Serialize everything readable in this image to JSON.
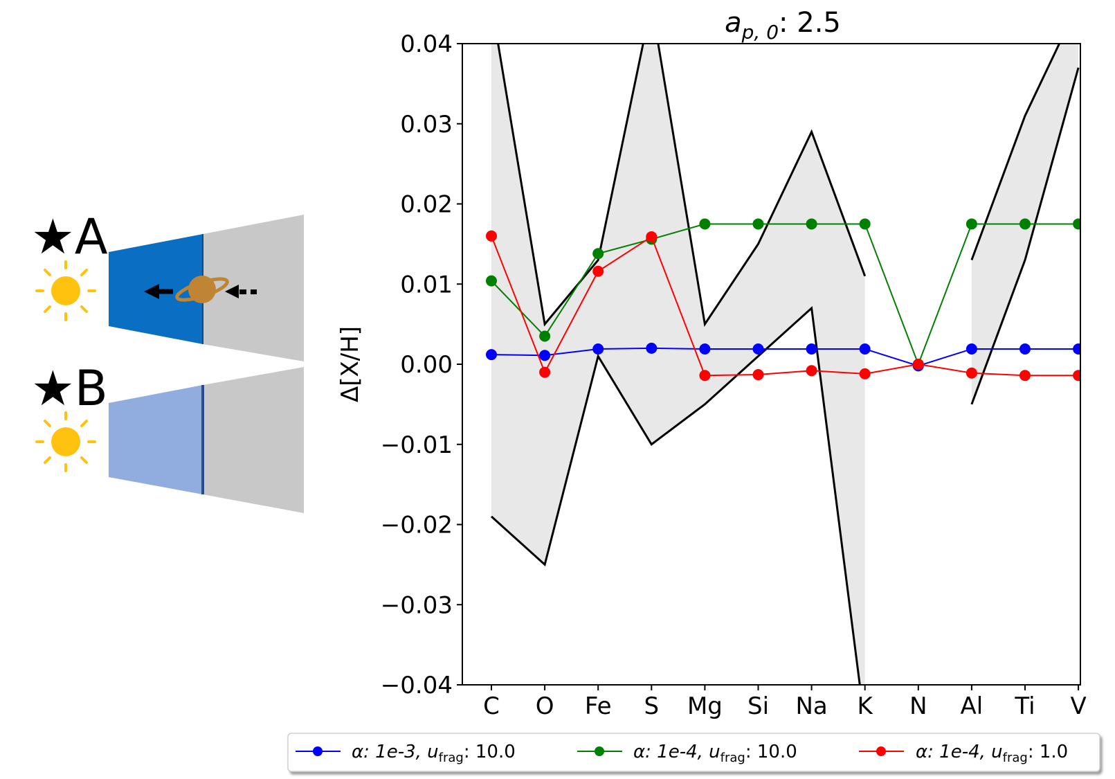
{
  "schematic": {
    "label_a": "★A",
    "label_b": "★B",
    "sun_icon": "sun-icon",
    "planet_icon": "planet-icon",
    "colors": {
      "disc_a_inner": "#0a6fc2",
      "disc_b_inner": "#91acdf",
      "disc_outer": "#c8c8c8",
      "sun": "#ffc20e"
    }
  },
  "chart_data": {
    "type": "line",
    "title_main": "a",
    "title_sub": "p, 0",
    "title_rest": ": 2.5",
    "xlabel": "",
    "ylabel": "Δ[X/H]",
    "categories": [
      "C",
      "O",
      "Fe",
      "S",
      "Mg",
      "Si",
      "Na",
      "K",
      "N",
      "Al",
      "Ti",
      "V"
    ],
    "ylim": [
      -0.04,
      0.04
    ],
    "yticks": [
      "−0.04",
      "−0.03",
      "−0.02",
      "−0.01",
      "0.00",
      "0.01",
      "0.02",
      "0.03",
      "0.04"
    ],
    "ytick_values": [
      -0.04,
      -0.03,
      -0.02,
      -0.01,
      0.0,
      0.01,
      0.02,
      0.03,
      0.04
    ],
    "observed_band": {
      "segments": [
        {
          "categories": [
            "C",
            "O",
            "Fe",
            "S",
            "Mg",
            "Si",
            "Na",
            "K"
          ],
          "upper": [
            0.045,
            0.005,
            0.013,
            0.045,
            0.005,
            0.015,
            0.029,
            0.011
          ],
          "lower": [
            -0.019,
            -0.025,
            0.001,
            -0.01,
            -0.005,
            0.001,
            0.007,
            -0.045
          ]
        },
        {
          "categories": [
            "Al",
            "Ti",
            "V"
          ],
          "upper": [
            0.013,
            0.031,
            0.045
          ],
          "lower": [
            -0.005,
            0.013,
            0.037
          ]
        }
      ],
      "fill_color": "#e8e8e8",
      "line_color": "#000000"
    },
    "series": [
      {
        "legend_prefix": "α: 1e-3, u",
        "legend_sub": "frag",
        "legend_suffix": ": 10.0",
        "color": "#0000ff",
        "values": [
          0.0012,
          0.0011,
          0.0019,
          0.002,
          0.0019,
          0.0019,
          0.0019,
          0.0019,
          -0.0002,
          0.0019,
          0.0019,
          0.0019
        ]
      },
      {
        "legend_prefix": "α: 1e-4, u",
        "legend_sub": "frag",
        "legend_suffix": ": 10.0",
        "color": "#008000",
        "values": [
          0.0104,
          0.0035,
          0.0138,
          0.0156,
          0.0175,
          0.0175,
          0.0175,
          0.0175,
          0.0,
          0.0175,
          0.0175,
          0.0175
        ]
      },
      {
        "legend_prefix": "α: 1e-4, u",
        "legend_sub": "frag",
        "legend_suffix": ": 1.0",
        "color": "#ff0000",
        "values": [
          0.016,
          -0.001,
          0.0116,
          0.0159,
          -0.0014,
          -0.0013,
          -0.0008,
          -0.0012,
          0.0,
          -0.0011,
          -0.0014,
          -0.0014
        ]
      }
    ],
    "grid": false,
    "legend_position": "bottom"
  }
}
